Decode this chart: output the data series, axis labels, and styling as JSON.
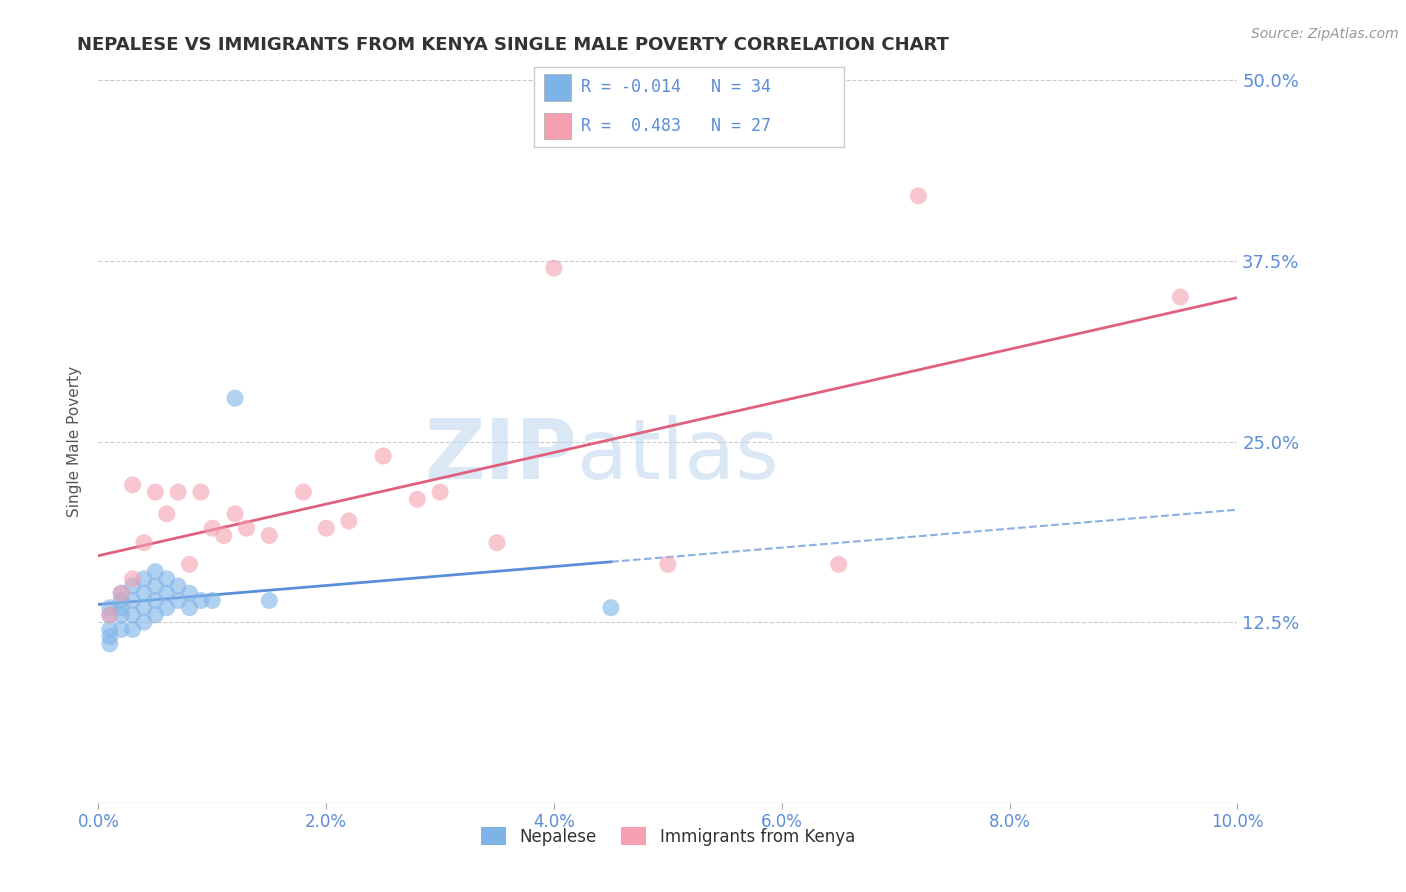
{
  "title": "NEPALESE VS IMMIGRANTS FROM KENYA SINGLE MALE POVERTY CORRELATION CHART",
  "source": "Source: ZipAtlas.com",
  "xlabel": "",
  "ylabel": "Single Male Poverty",
  "legend_label1": "Nepalese",
  "legend_label2": "Immigrants from Kenya",
  "R1": -0.014,
  "N1": 34,
  "R2": 0.483,
  "N2": 27,
  "xlim": [
    0.0,
    0.1
  ],
  "ylim": [
    0.0,
    0.5
  ],
  "yticks": [
    0.0,
    0.125,
    0.25,
    0.375,
    0.5
  ],
  "ytick_labels": [
    "",
    "12.5%",
    "25.0%",
    "37.5%",
    "50.0%"
  ],
  "xticks": [
    0.0,
    0.02,
    0.04,
    0.06,
    0.08,
    0.1
  ],
  "xtick_labels": [
    "0.0%",
    "2.0%",
    "4.0%",
    "6.0%",
    "8.0%",
    "10.0%"
  ],
  "color1": "#7EB3E8",
  "color2": "#F4A0B0",
  "trend_color1": "#5B8DD9",
  "trend_color2": "#E06080",
  "background_color": "#FFFFFF",
  "grid_color": "#CCCCCC",
  "axis_label_color": "#5B8DD9",
  "title_color": "#333333",
  "nepalese_x": [
    0.001,
    0.001,
    0.001,
    0.001,
    0.001,
    0.002,
    0.002,
    0.002,
    0.002,
    0.002,
    0.003,
    0.003,
    0.003,
    0.003,
    0.004,
    0.004,
    0.004,
    0.004,
    0.005,
    0.005,
    0.005,
    0.005,
    0.006,
    0.006,
    0.006,
    0.007,
    0.007,
    0.008,
    0.008,
    0.009,
    0.01,
    0.012,
    0.015,
    0.045
  ],
  "nepalese_y": [
    0.135,
    0.13,
    0.12,
    0.115,
    0.11,
    0.145,
    0.14,
    0.135,
    0.13,
    0.12,
    0.15,
    0.14,
    0.13,
    0.12,
    0.155,
    0.145,
    0.135,
    0.125,
    0.16,
    0.15,
    0.14,
    0.13,
    0.155,
    0.145,
    0.135,
    0.15,
    0.14,
    0.145,
    0.135,
    0.14,
    0.14,
    0.28,
    0.14,
    0.135
  ],
  "kenya_x": [
    0.001,
    0.002,
    0.003,
    0.003,
    0.004,
    0.005,
    0.006,
    0.007,
    0.008,
    0.009,
    0.01,
    0.011,
    0.012,
    0.013,
    0.015,
    0.018,
    0.02,
    0.022,
    0.025,
    0.028,
    0.03,
    0.035,
    0.04,
    0.05,
    0.065,
    0.072,
    0.095
  ],
  "kenya_y": [
    0.13,
    0.145,
    0.155,
    0.22,
    0.18,
    0.215,
    0.2,
    0.215,
    0.165,
    0.215,
    0.19,
    0.185,
    0.2,
    0.19,
    0.185,
    0.215,
    0.19,
    0.195,
    0.24,
    0.21,
    0.215,
    0.18,
    0.37,
    0.165,
    0.165,
    0.42,
    0.35
  ]
}
